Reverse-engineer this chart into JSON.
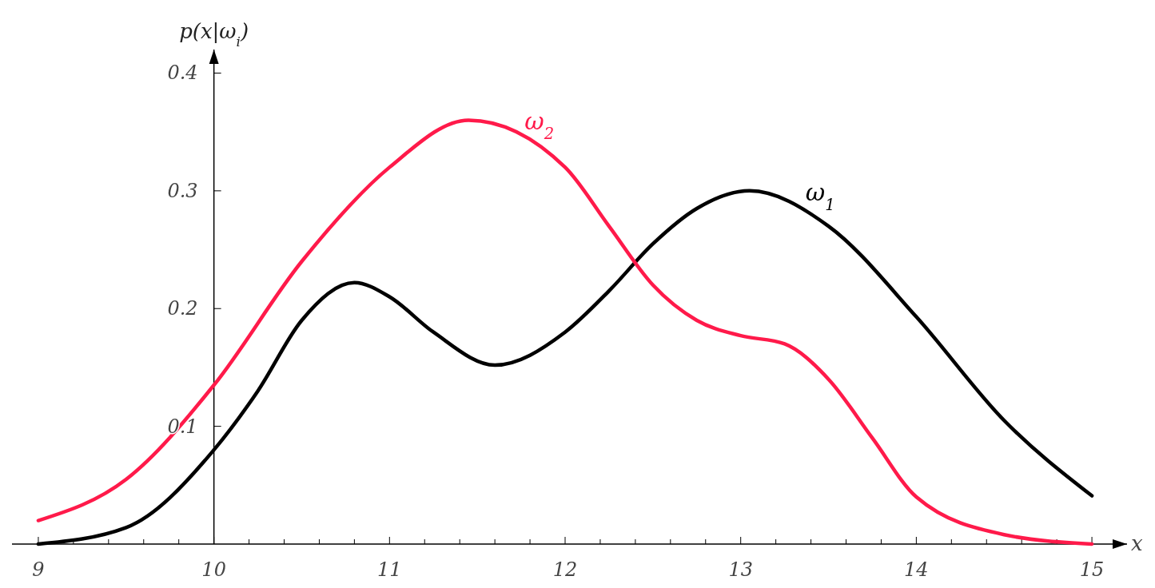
{
  "chart_data": {
    "type": "line",
    "xlabel": "x",
    "ylabel": "p(x|ω$_{i}$)",
    "xlim": [
      8.85,
      15.2
    ],
    "ylim": [
      0,
      0.42
    ],
    "xticks": [
      9,
      {
        "value": 9.2,
        "label": null
      },
      {
        "value": 9.4,
        "label": null
      },
      {
        "value": 9.6,
        "label": null
      },
      {
        "value": 9.8,
        "label": null
      },
      10,
      {
        "value": 10.2,
        "label": null
      },
      {
        "value": 10.4,
        "label": null
      },
      {
        "value": 10.6,
        "label": null
      },
      {
        "value": 10.8,
        "label": null
      },
      11,
      {
        "value": 11.2,
        "label": null
      },
      {
        "value": 11.4,
        "label": null
      },
      {
        "value": 11.6,
        "label": null
      },
      {
        "value": 11.8,
        "label": null
      },
      12,
      {
        "value": 12.2,
        "label": null
      },
      {
        "value": 12.4,
        "label": null
      },
      {
        "value": 12.6,
        "label": null
      },
      {
        "value": 12.8,
        "label": null
      },
      13,
      {
        "value": 13.2,
        "label": null
      },
      {
        "value": 13.4,
        "label": null
      },
      {
        "value": 13.6,
        "label": null
      },
      {
        "value": 13.8,
        "label": null
      },
      14,
      {
        "value": 14.2,
        "label": null
      },
      {
        "value": 14.4,
        "label": null
      },
      {
        "value": 14.6,
        "label": null
      },
      {
        "value": 14.8,
        "label": null
      },
      15
    ],
    "yticks": [
      0.1,
      0.2,
      0.3,
      0.4
    ],
    "x": [
      9,
      9.5,
      10,
      10.25,
      10.5,
      10.8,
      11,
      11.25,
      11.6,
      12,
      12.25,
      12.5,
      12.75,
      13.05,
      13.5,
      14,
      14.5,
      15
    ],
    "series": [
      {
        "name": "ω$_{1}$",
        "color": "#000000",
        "values": [
          0,
          0.014,
          0.08,
          0.13,
          0.19,
          0.222,
          0.21,
          0.18,
          0.152,
          0.18,
          0.215,
          0.255,
          0.285,
          0.3,
          0.27,
          0.193,
          0.105,
          0.041
        ]
      },
      {
        "name": "ω$_{2}$",
        "color": "#ff1a4a",
        "x": [
          9,
          9.5,
          10,
          10.5,
          11,
          11.45,
          12,
          12.25,
          12.5,
          12.75,
          13,
          13.25,
          13.5,
          13.75,
          14,
          14.5,
          15
        ],
        "values": [
          0.02,
          0.055,
          0.135,
          0.24,
          0.32,
          0.36,
          0.32,
          0.27,
          0.22,
          0.19,
          0.177,
          0.17,
          0.14,
          0.09,
          0.04,
          0.008,
          0
        ]
      }
    ],
    "grid": false,
    "marker": "none",
    "line_style": "solid"
  }
}
